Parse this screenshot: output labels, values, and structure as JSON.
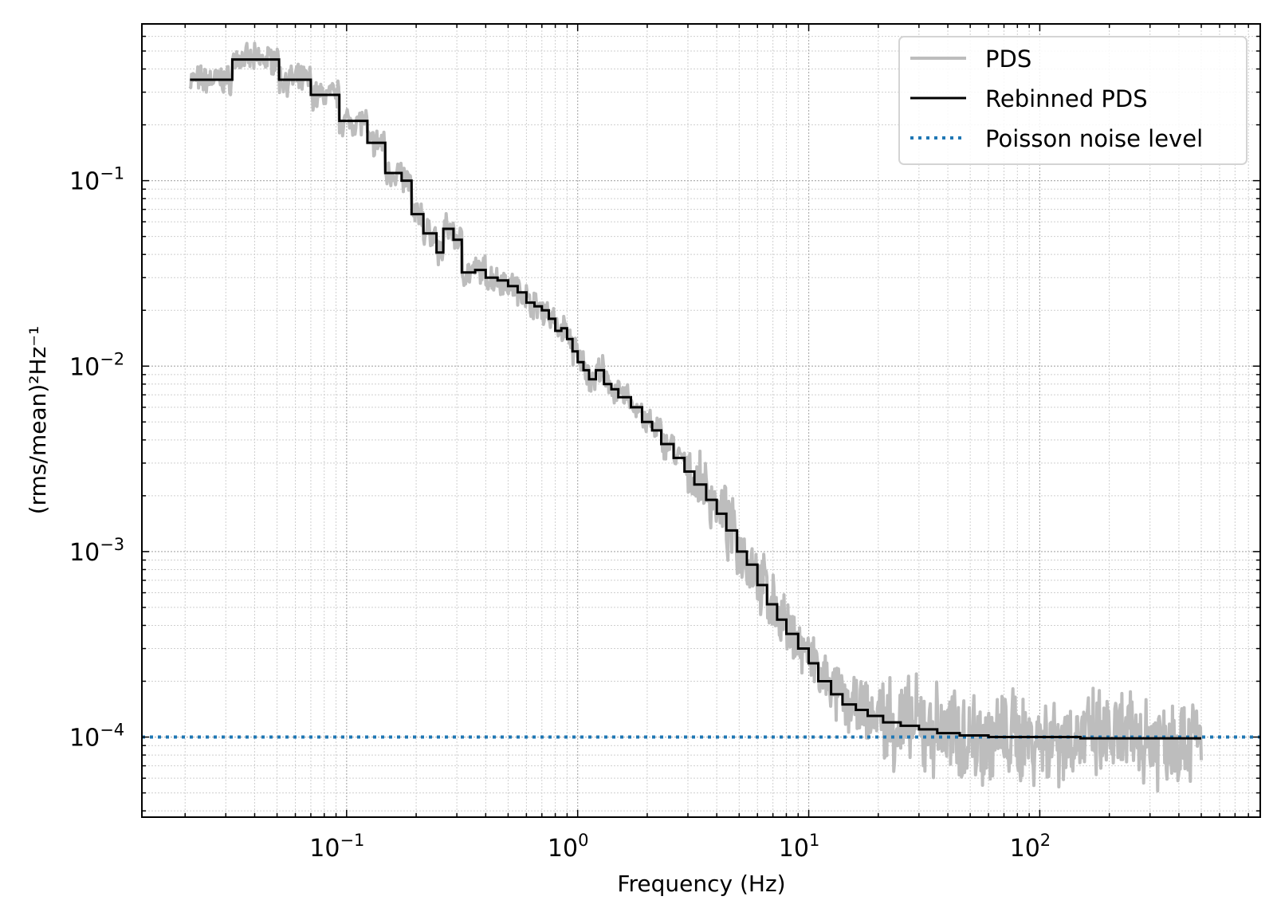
{
  "chart_data": {
    "type": "line",
    "title": "",
    "xlabel": "Frequency (Hz)",
    "ylabel": "(rms/mean)²Hz⁻¹",
    "x_scale": "log",
    "y_scale": "log",
    "xlim": [
      0.013,
      900
    ],
    "ylim": [
      3.7e-05,
      0.7
    ],
    "grid": true,
    "grid_minor": true,
    "legend_position": "top-right",
    "x_ticks": [
      {
        "value": 0.1,
        "base": "10",
        "exp": "−1"
      },
      {
        "value": 1,
        "base": "10",
        "exp": "0"
      },
      {
        "value": 10,
        "base": "10",
        "exp": "1"
      },
      {
        "value": 100,
        "base": "10",
        "exp": "2"
      }
    ],
    "y_ticks": [
      {
        "value": 0.1,
        "base": "10",
        "exp": "−1"
      },
      {
        "value": 0.01,
        "base": "10",
        "exp": "−2"
      },
      {
        "value": 0.001,
        "base": "10",
        "exp": "−3"
      },
      {
        "value": 0.0001,
        "base": "10",
        "exp": "−4"
      }
    ],
    "legend": [
      {
        "label": "PDS",
        "color": "#bdbdbd",
        "style": "solid"
      },
      {
        "label": "Rebinned PDS",
        "color": "#000000",
        "style": "solid"
      },
      {
        "label": "Poisson noise level",
        "color": "#1f77b4",
        "style": "dotted"
      }
    ],
    "poisson_level": 0.0001,
    "series": [
      {
        "name": "Rebinned PDS",
        "color": "#000000",
        "drawstyle": "steps-post",
        "x": [
          0.021,
          0.032,
          0.051,
          0.07,
          0.093,
          0.123,
          0.147,
          0.173,
          0.191,
          0.215,
          0.245,
          0.262,
          0.29,
          0.315,
          0.36,
          0.4,
          0.45,
          0.5,
          0.55,
          0.6,
          0.65,
          0.7,
          0.75,
          0.8,
          0.85,
          0.9,
          0.95,
          1.0,
          1.06,
          1.12,
          1.2,
          1.3,
          1.4,
          1.5,
          1.7,
          1.9,
          2.1,
          2.3,
          2.6,
          2.9,
          3.2,
          3.6,
          4.0,
          4.4,
          4.9,
          5.4,
          6.0,
          6.6,
          7.3,
          8.0,
          9.0,
          10.0,
          11.0,
          12.5,
          14.0,
          16.0,
          18.0,
          21.0,
          25.0,
          30.0,
          36.0,
          45.0,
          60.0,
          80.0,
          110.0,
          150.0,
          200.0,
          300.0,
          500.0
        ],
        "y": [
          0.35,
          0.45,
          0.35,
          0.29,
          0.21,
          0.16,
          0.11,
          0.1,
          0.066,
          0.052,
          0.041,
          0.055,
          0.048,
          0.032,
          0.033,
          0.03,
          0.029,
          0.027,
          0.025,
          0.022,
          0.021,
          0.02,
          0.018,
          0.0155,
          0.016,
          0.014,
          0.012,
          0.0105,
          0.0095,
          0.0085,
          0.0095,
          0.008,
          0.0075,
          0.0068,
          0.006,
          0.005,
          0.0045,
          0.0038,
          0.0032,
          0.0027,
          0.0023,
          0.0019,
          0.0016,
          0.0013,
          0.001,
          0.00085,
          0.00066,
          0.00052,
          0.00043,
          0.00036,
          0.0003,
          0.00025,
          0.0002,
          0.00017,
          0.00015,
          0.00014,
          0.00013,
          0.00012,
          0.000115,
          0.00011,
          0.000105,
          0.000102,
          0.0001,
          0.0001,
          0.0001,
          9.85e-05,
          9.85e-05,
          9.85e-05,
          9.85e-05
        ]
      },
      {
        "name": "PDS",
        "color": "#bdbdbd",
        "note_level": "noisy envelope around rebinned PDS; spread grows to roughly 0.00006–0.00014 above 30 Hz",
        "x_range": [
          0.021,
          500
        ]
      }
    ]
  }
}
